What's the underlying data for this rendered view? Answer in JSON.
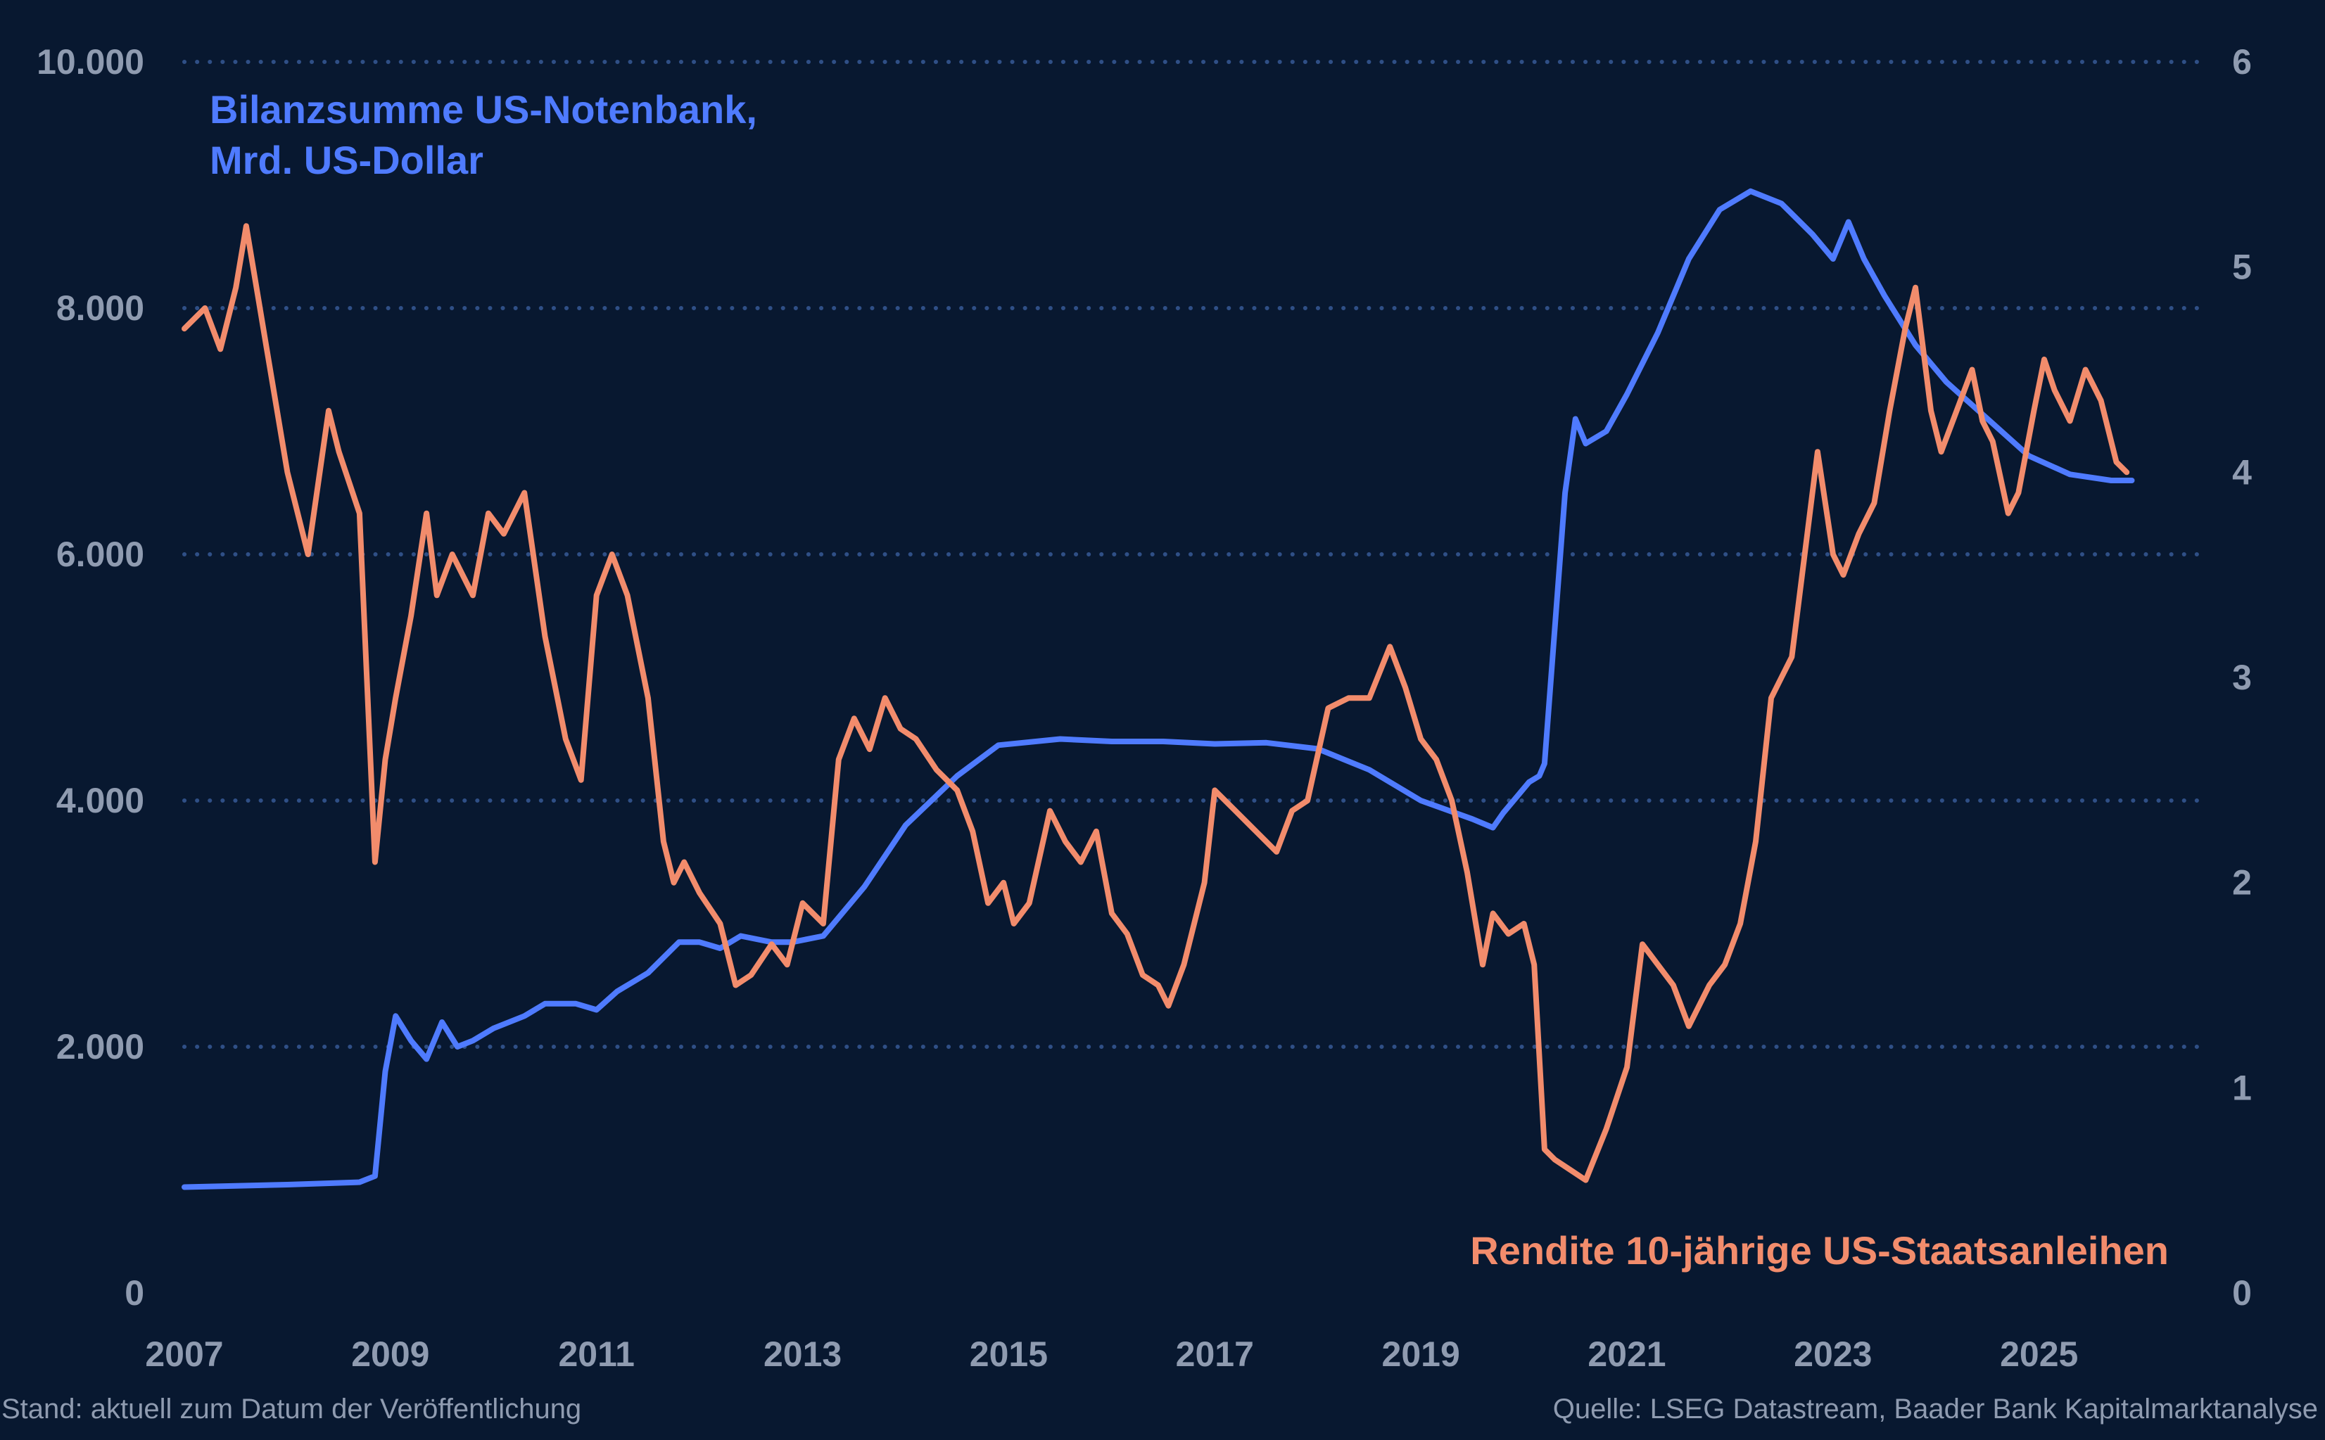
{
  "chart_data": {
    "type": "line",
    "title": "",
    "xlabel": "",
    "x_ticks": [
      "2007",
      "2009",
      "2011",
      "2013",
      "2015",
      "2017",
      "2019",
      "2021",
      "2023",
      "2025"
    ],
    "x_range": [
      2007,
      2026.6
    ],
    "y_left": {
      "range": [
        0,
        10000
      ],
      "ticks": [
        "0",
        "2.000",
        "4.000",
        "6.000",
        "8.000",
        "10.000"
      ],
      "tick_values": [
        0,
        2000,
        4000,
        6000,
        8000,
        10000
      ]
    },
    "y_right": {
      "range": [
        0,
        6
      ],
      "ticks": [
        "0",
        "1",
        "2",
        "3",
        "4",
        "5",
        "6"
      ],
      "tick_values": [
        0,
        1,
        2,
        3,
        4,
        5,
        6
      ]
    },
    "grid": true,
    "colors": {
      "background": "#081830",
      "fed": "#4F7BFF",
      "yield": "#F28C6C",
      "text": "#8F9BB0",
      "grid": "#2F4F86"
    },
    "series": [
      {
        "name": "Bilanzsumme US-Notenbank, Mrd. US-Dollar",
        "label_lines": [
          "Bilanzsumme US-Notenbank,",
          "Mrd. US-Dollar"
        ],
        "axis": "left",
        "x": [
          2007.0,
          2008.0,
          2008.7,
          2008.85,
          2008.95,
          2009.05,
          2009.2,
          2009.35,
          2009.5,
          2009.65,
          2009.8,
          2010.0,
          2010.3,
          2010.5,
          2010.8,
          2011.0,
          2011.2,
          2011.5,
          2011.8,
          2012.0,
          2012.2,
          2012.4,
          2012.7,
          2012.9,
          2013.2,
          2013.6,
          2014.0,
          2014.5,
          2014.9,
          2015.5,
          2016.0,
          2016.5,
          2017.0,
          2017.5,
          2018.0,
          2018.5,
          2019.0,
          2019.5,
          2019.7,
          2019.8,
          2019.95,
          2020.05,
          2020.15,
          2020.2,
          2020.3,
          2020.4,
          2020.5,
          2020.6,
          2020.8,
          2021.0,
          2021.3,
          2021.6,
          2021.9,
          2022.2,
          2022.5,
          2022.8,
          2023.0,
          2023.15,
          2023.3,
          2023.5,
          2023.8,
          2024.1,
          2024.5,
          2024.9,
          2025.3,
          2025.7,
          2025.9
        ],
        "values": [
          860,
          880,
          900,
          950,
          1800,
          2250,
          2050,
          1900,
          2200,
          2000,
          2050,
          2150,
          2250,
          2350,
          2350,
          2300,
          2450,
          2600,
          2850,
          2850,
          2800,
          2900,
          2850,
          2850,
          2900,
          3300,
          3800,
          4200,
          4450,
          4500,
          4480,
          4480,
          4460,
          4470,
          4420,
          4250,
          4000,
          3850,
          3780,
          3900,
          4050,
          4150,
          4200,
          4300,
          5400,
          6500,
          7100,
          6900,
          7000,
          7300,
          7800,
          8400,
          8800,
          8950,
          8850,
          8600,
          8400,
          8700,
          8400,
          8100,
          7700,
          7400,
          7100,
          6800,
          6650,
          6600,
          6600
        ]
      },
      {
        "name": "Rendite 10-jährige US-Staatsanleihen",
        "axis": "right",
        "x": [
          2007.0,
          2007.2,
          2007.35,
          2007.5,
          2007.6,
          2007.8,
          2008.0,
          2008.2,
          2008.4,
          2008.5,
          2008.7,
          2008.85,
          2008.95,
          2009.05,
          2009.2,
          2009.35,
          2009.45,
          2009.6,
          2009.8,
          2009.95,
          2010.1,
          2010.3,
          2010.5,
          2010.7,
          2010.85,
          2011.0,
          2011.15,
          2011.3,
          2011.5,
          2011.65,
          2011.75,
          2011.85,
          2012.0,
          2012.2,
          2012.35,
          2012.5,
          2012.7,
          2012.85,
          2013.0,
          2013.2,
          2013.35,
          2013.5,
          2013.65,
          2013.8,
          2013.95,
          2014.1,
          2014.3,
          2014.5,
          2014.65,
          2014.8,
          2014.95,
          2015.05,
          2015.2,
          2015.4,
          2015.55,
          2015.7,
          2015.85,
          2016.0,
          2016.15,
          2016.3,
          2016.45,
          2016.55,
          2016.7,
          2016.8,
          2016.9,
          2017.0,
          2017.2,
          2017.4,
          2017.6,
          2017.75,
          2017.9,
          2018.1,
          2018.3,
          2018.5,
          2018.7,
          2018.85,
          2019.0,
          2019.15,
          2019.3,
          2019.45,
          2019.6,
          2019.7,
          2019.85,
          2020.0,
          2020.1,
          2020.2,
          2020.3,
          2020.45,
          2020.6,
          2020.8,
          2021.0,
          2021.15,
          2021.3,
          2021.45,
          2021.6,
          2021.8,
          2021.95,
          2022.1,
          2022.25,
          2022.4,
          2022.5,
          2022.6,
          2022.75,
          2022.85,
          2023.0,
          2023.1,
          2023.25,
          2023.4,
          2023.55,
          2023.7,
          2023.8,
          2023.95,
          2024.05,
          2024.2,
          2024.35,
          2024.45,
          2024.55,
          2024.7,
          2024.8,
          2024.95,
          2025.05,
          2025.15,
          2025.3,
          2025.45,
          2025.6,
          2025.75,
          2025.85
        ],
        "values": [
          4.7,
          4.8,
          4.6,
          4.9,
          5.2,
          4.6,
          4.0,
          3.6,
          4.3,
          4.1,
          3.8,
          2.1,
          2.6,
          2.9,
          3.3,
          3.8,
          3.4,
          3.6,
          3.4,
          3.8,
          3.7,
          3.9,
          3.2,
          2.7,
          2.5,
          3.4,
          3.6,
          3.4,
          2.9,
          2.2,
          2.0,
          2.1,
          1.95,
          1.8,
          1.5,
          1.55,
          1.7,
          1.6,
          1.9,
          1.8,
          2.6,
          2.8,
          2.65,
          2.9,
          2.75,
          2.7,
          2.55,
          2.45,
          2.25,
          1.9,
          2.0,
          1.8,
          1.9,
          2.35,
          2.2,
          2.1,
          2.25,
          1.85,
          1.75,
          1.55,
          1.5,
          1.4,
          1.6,
          1.8,
          2.0,
          2.45,
          2.35,
          2.25,
          2.15,
          2.35,
          2.4,
          2.85,
          2.9,
          2.9,
          3.15,
          2.95,
          2.7,
          2.6,
          2.4,
          2.05,
          1.6,
          1.85,
          1.75,
          1.8,
          1.6,
          0.7,
          0.65,
          0.6,
          0.55,
          0.8,
          1.1,
          1.7,
          1.6,
          1.5,
          1.3,
          1.5,
          1.6,
          1.8,
          2.2,
          2.9,
          3.0,
          3.1,
          3.7,
          4.1,
          3.6,
          3.5,
          3.7,
          3.85,
          4.3,
          4.7,
          4.9,
          4.3,
          4.1,
          4.3,
          4.5,
          4.25,
          4.15,
          3.8,
          3.9,
          4.3,
          4.55,
          4.4,
          4.25,
          4.5,
          4.35,
          4.05,
          4.0
        ]
      }
    ]
  },
  "labels": {
    "fed_line1": "Bilanzsumme US-Notenbank,",
    "fed_line2": "Mrd. US-Dollar",
    "yield": "Rendite 10-jährige US-Staatsanleihen"
  },
  "footer": {
    "left": "Stand: aktuell zum Datum der Veröffentlichung",
    "right": "Quelle: LSEG Datastream, Baader Bank Kapitalmarktanalyse"
  }
}
